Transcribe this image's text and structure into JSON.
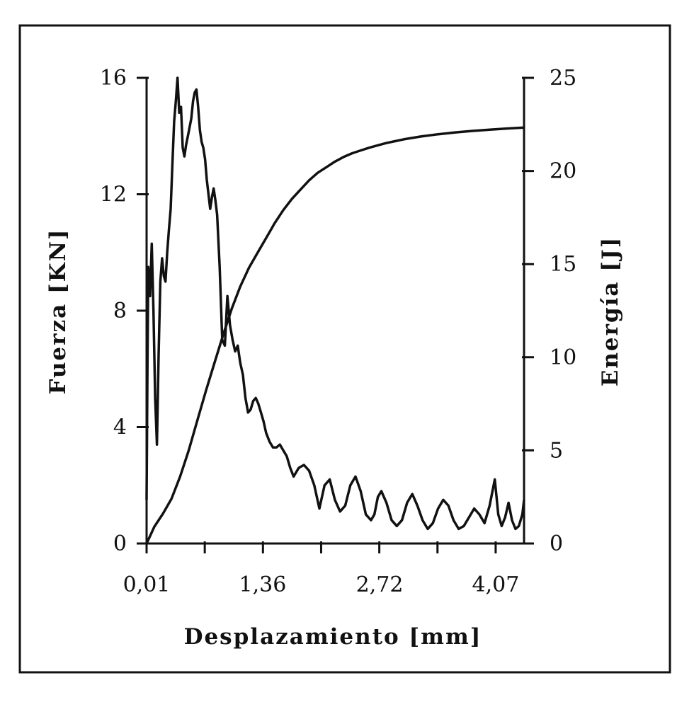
{
  "chart_data": {
    "type": "line",
    "xlabel": "Desplazamiento  [mm]",
    "ylabel": "Fuerza [KN]",
    "y2label": "Energía [J]",
    "x_ticks": [
      "0,01",
      "1,36",
      "2,72",
      "4,07"
    ],
    "x_tick_values": [
      0.01,
      1.36,
      2.72,
      4.07
    ],
    "xlim": [
      0.01,
      4.4
    ],
    "ylim": [
      0,
      16
    ],
    "y_ticks": [
      "0",
      "4",
      "8",
      "12",
      "16"
    ],
    "y2lim": [
      0,
      25
    ],
    "y2_ticks": [
      "0",
      "5",
      "10",
      "15",
      "20",
      "25"
    ],
    "grid": false,
    "series": [
      {
        "axis": "left",
        "color": "#111111",
        "x": [
          0.01,
          0.02,
          0.03,
          0.05,
          0.07,
          0.09,
          0.11,
          0.13,
          0.15,
          0.17,
          0.19,
          0.21,
          0.23,
          0.25,
          0.27,
          0.29,
          0.31,
          0.33,
          0.35,
          0.37,
          0.39,
          0.41,
          0.43,
          0.45,
          0.47,
          0.49,
          0.51,
          0.53,
          0.55,
          0.57,
          0.59,
          0.61,
          0.63,
          0.65,
          0.67,
          0.69,
          0.71,
          0.73,
          0.75,
          0.77,
          0.79,
          0.81,
          0.83,
          0.86,
          0.89,
          0.92,
          0.95,
          0.98,
          1.01,
          1.04,
          1.07,
          1.1,
          1.13,
          1.16,
          1.19,
          1.22,
          1.25,
          1.28,
          1.31,
          1.34,
          1.37,
          1.4,
          1.44,
          1.48,
          1.52,
          1.56,
          1.6,
          1.64,
          1.68,
          1.72,
          1.78,
          1.84,
          1.9,
          1.96,
          2.02,
          2.08,
          2.14,
          2.2,
          2.26,
          2.32,
          2.38,
          2.44,
          2.5,
          2.56,
          2.62,
          2.66,
          2.7,
          2.74,
          2.8,
          2.86,
          2.92,
          2.98,
          3.04,
          3.1,
          3.16,
          3.22,
          3.28,
          3.34,
          3.4,
          3.46,
          3.52,
          3.58,
          3.64,
          3.7,
          3.76,
          3.82,
          3.88,
          3.94,
          4.0,
          4.06,
          4.1,
          4.14,
          4.18,
          4.22,
          4.26,
          4.3,
          4.34,
          4.38,
          4.4
        ],
        "values": [
          1.5,
          6.0,
          9.5,
          8.5,
          10.3,
          8.0,
          5.0,
          3.4,
          6.5,
          9.0,
          9.8,
          9.2,
          9.0,
          10.0,
          10.8,
          11.5,
          13.0,
          14.5,
          15.2,
          16.0,
          14.8,
          15.0,
          13.6,
          13.3,
          13.7,
          14.0,
          14.3,
          14.6,
          15.2,
          15.5,
          15.6,
          15.0,
          14.2,
          13.8,
          13.6,
          13.2,
          12.5,
          12.0,
          11.5,
          11.9,
          12.2,
          11.8,
          11.3,
          9.5,
          7.0,
          6.8,
          8.5,
          7.5,
          7.0,
          6.6,
          6.8,
          6.2,
          5.8,
          5.0,
          4.5,
          4.6,
          4.9,
          5.0,
          4.8,
          4.5,
          4.2,
          3.8,
          3.5,
          3.3,
          3.3,
          3.4,
          3.2,
          3.0,
          2.6,
          2.3,
          2.6,
          2.7,
          2.5,
          2.0,
          1.2,
          2.0,
          2.2,
          1.5,
          1.1,
          1.3,
          2.0,
          2.3,
          1.8,
          1.0,
          0.8,
          1.0,
          1.6,
          1.8,
          1.4,
          0.8,
          0.6,
          0.8,
          1.4,
          1.7,
          1.3,
          0.8,
          0.5,
          0.7,
          1.2,
          1.5,
          1.3,
          0.8,
          0.5,
          0.6,
          0.9,
          1.2,
          1.0,
          0.7,
          1.3,
          2.2,
          1.0,
          0.6,
          0.9,
          1.4,
          0.8,
          0.5,
          0.6,
          1.0,
          1.5
        ]
      },
      {
        "axis": "right",
        "color": "#111111",
        "x": [
          0.01,
          0.05,
          0.1,
          0.2,
          0.3,
          0.4,
          0.5,
          0.6,
          0.7,
          0.8,
          0.9,
          1.0,
          1.1,
          1.2,
          1.3,
          1.4,
          1.5,
          1.6,
          1.7,
          1.8,
          1.9,
          2.0,
          2.1,
          2.2,
          2.3,
          2.4,
          2.5,
          2.6,
          2.7,
          2.8,
          2.9,
          3.0,
          3.2,
          3.4,
          3.6,
          3.8,
          4.0,
          4.2,
          4.4
        ],
        "values": [
          0.0,
          0.4,
          0.9,
          1.6,
          2.4,
          3.6,
          5.0,
          6.6,
          8.2,
          9.7,
          11.2,
          12.6,
          13.8,
          14.8,
          15.6,
          16.4,
          17.2,
          17.9,
          18.5,
          19.0,
          19.5,
          19.9,
          20.2,
          20.5,
          20.75,
          20.95,
          21.1,
          21.25,
          21.38,
          21.5,
          21.6,
          21.7,
          21.85,
          21.97,
          22.07,
          22.15,
          22.22,
          22.28,
          22.33
        ]
      }
    ]
  }
}
